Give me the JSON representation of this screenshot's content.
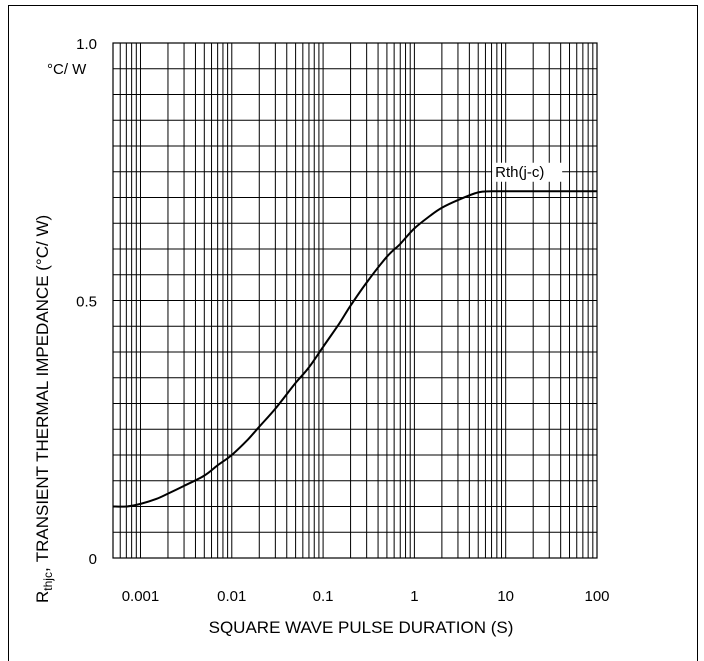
{
  "chart_data": {
    "type": "line",
    "title": "",
    "xlabel": "SQUARE WAVE PULSE DURATION (S)",
    "ylabel": "TRANSIENT THERMAL IMPEDANCE (°C/ W)",
    "ylabel_prefix_main": "R",
    "ylabel_prefix_sub": "thjc",
    "ylabel_sep": ",",
    "y_unit_label": "°C/ W",
    "x_scale": "log",
    "xlim": [
      0.0005,
      100
    ],
    "ylim": [
      0,
      1.0
    ],
    "x_ticks": [
      {
        "value": 0.001,
        "label": "0.001"
      },
      {
        "value": 0.01,
        "label": "0.01"
      },
      {
        "value": 0.1,
        "label": "0.1"
      },
      {
        "value": 1,
        "label": "1"
      },
      {
        "value": 10,
        "label": "10"
      },
      {
        "value": 100,
        "label": "100"
      }
    ],
    "y_ticks": [
      {
        "value": 0,
        "label": "0"
      },
      {
        "value": 0.5,
        "label": "0.5"
      },
      {
        "value": 1.0,
        "label": "1.0"
      }
    ],
    "y_minor_step": 0.05,
    "grid": true,
    "series": [
      {
        "name": "Rth(j-c)",
        "x": [
          0.0005,
          0.0007,
          0.001,
          0.0015,
          0.002,
          0.003,
          0.005,
          0.007,
          0.01,
          0.015,
          0.02,
          0.03,
          0.05,
          0.07,
          0.1,
          0.15,
          0.2,
          0.3,
          0.5,
          0.7,
          1,
          1.5,
          2,
          3,
          5,
          7,
          10,
          20,
          50,
          100
        ],
        "y": [
          0.1,
          0.1,
          0.105,
          0.115,
          0.125,
          0.14,
          0.16,
          0.18,
          0.2,
          0.23,
          0.255,
          0.29,
          0.34,
          0.37,
          0.41,
          0.455,
          0.49,
          0.535,
          0.585,
          0.61,
          0.64,
          0.665,
          0.68,
          0.695,
          0.71,
          0.712,
          0.712,
          0.712,
          0.712,
          0.712
        ]
      }
    ],
    "annotation": {
      "text": "Rth(j-c)",
      "x": 20,
      "y": 0.75
    }
  }
}
